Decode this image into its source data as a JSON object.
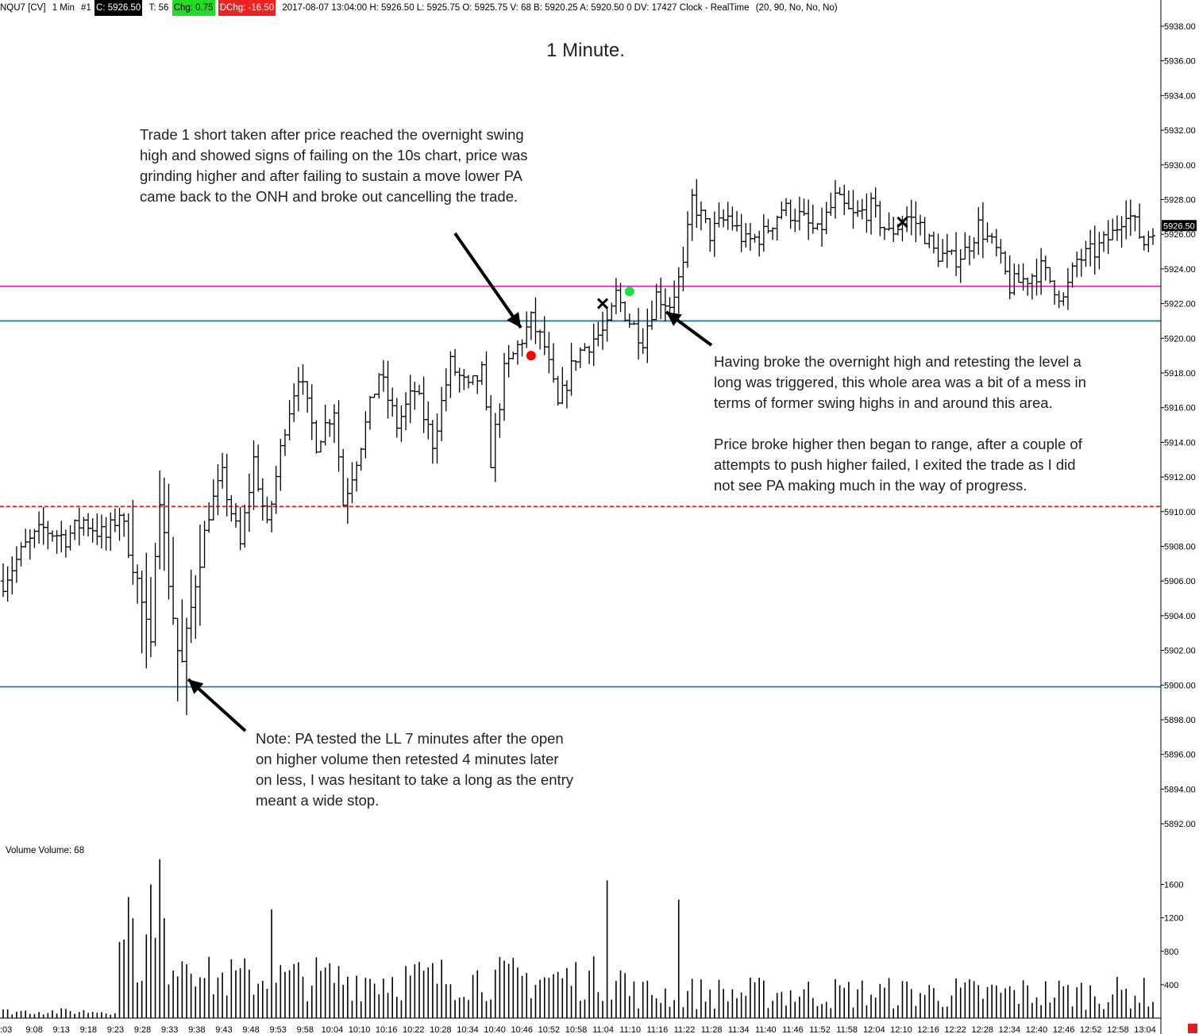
{
  "header": {
    "symbol": "NQU7 [CV]",
    "interval": "1 Min",
    "chart_no": "#1",
    "close": "C: 5926.50",
    "ticks": "T: 56",
    "chg": "Chg: 0.75",
    "dchg": "DChg: -16.50",
    "info": "2017-08-07 13:04:00 H: 5926.50 L: 5925.75 O: 5925.75 V: 68 B: 5920.25 A: 5920.50 0 DV: 17427 Clock - RealTime",
    "params": "(20, 90, No, No, No)",
    "colors": {
      "close_bg": "#000000",
      "close_fg": "#ffffff",
      "chg_bg": "#22dd22",
      "chg_fg": "#000000",
      "dchg_bg": "#ee2222",
      "dchg_fg": "#ffffff"
    }
  },
  "title": "1 Minute.",
  "annotations": {
    "trade1": "Trade 1 short taken after price reached the overnight swing\nhigh and showed signs of failing on the 10s chart, price was\ngrinding higher and after failing to sustain a move lower PA\ncame back to the ONH and broke out cancelling the trade.",
    "long": "Having broke the overnight high and retesting the level a\nlong was triggered, this whole area was a bit of a mess in\nterms of former swing highs in and around this area.\n\nPrice broke higher then began to range, after a couple of\nattempts to push higher failed, I exited the trade as I did\nnot see PA making much in the way of progress.",
    "note": "Note:  PA tested the LL 7 minutes after the open\non higher volume then retested 4 minutes later\non less, I was hesitant to take a long as the entry\nmeant a wide stop."
  },
  "volume_label": "Volume  Volume: 68",
  "colors": {
    "bars": "#000000",
    "magenta_line": "#dd22cc",
    "blue_line": "#2277aa",
    "red_dashed": "#dd2222",
    "entry_short": "#ff0000",
    "entry_long": "#22dd44",
    "last_price_bg": "#000000"
  },
  "chart_data": {
    "type": "ohlc",
    "y_tick_labels": [
      "5938.00",
      "5936.00",
      "5934.00",
      "5932.00",
      "5930.00",
      "5928.00",
      "5926.00",
      "5924.00",
      "5922.00",
      "5920.00",
      "5918.00",
      "5916.00",
      "5914.00",
      "5912.00",
      "5910.00",
      "5908.00",
      "5906.00",
      "5904.00",
      "5902.00",
      "5900.00",
      "5898.00",
      "5896.00",
      "5894.00",
      "5892.00"
    ],
    "ylim": [
      5890.5,
      5939.5
    ],
    "last_price": 5926.5,
    "last_price_label": "5926.50",
    "x_time_labels": [
      ":03",
      "9:08",
      "9:13",
      "9:18",
      "9:23",
      "9:28",
      "9:33",
      "9:38",
      "9:43",
      "9:48",
      "9:53",
      "9:58",
      "10:04",
      "10:10",
      "10:16",
      "10:22",
      "10:28",
      "10:34",
      "10:40",
      "10:46",
      "10:52",
      "10:58",
      "11:04",
      "11:10",
      "11:16",
      "11:22",
      "11:28",
      "11:34",
      "11:40",
      "11:46",
      "11:52",
      "11:58",
      "12:04",
      "12:10",
      "12:16",
      "12:22",
      "12:28",
      "12:34",
      "12:40",
      "12:46",
      "12:52",
      "12:58",
      "13:04"
    ],
    "horizontal_levels": [
      {
        "price": 5923.0,
        "style": "solid",
        "color": "#dd22cc"
      },
      {
        "price": 5921.0,
        "style": "solid",
        "color": "#2277aa"
      },
      {
        "price": 5910.3,
        "style": "dashed",
        "color": "#dd2222"
      },
      {
        "price": 5899.9,
        "style": "solid",
        "color": "#2277aa"
      }
    ],
    "price_path": [
      [
        0,
        5906.0
      ],
      [
        5,
        5908.0
      ],
      [
        9,
        5909.0
      ],
      [
        14,
        5908.5
      ],
      [
        18,
        5909.5
      ],
      [
        23,
        5908.5
      ],
      [
        26,
        5910.0
      ],
      [
        30,
        5906.0
      ],
      [
        33,
        5902.0
      ],
      [
        34,
        5908.0
      ],
      [
        35,
        5911.0
      ],
      [
        37,
        5906.0
      ],
      [
        39,
        5902.0
      ],
      [
        40,
        5901.2
      ],
      [
        43,
        5906.0
      ],
      [
        46,
        5910.0
      ],
      [
        49,
        5912.0
      ],
      [
        53,
        5908.0
      ],
      [
        56,
        5913.0
      ],
      [
        59,
        5909.0
      ],
      [
        63,
        5915.0
      ],
      [
        66,
        5918.0
      ],
      [
        70,
        5914.0
      ],
      [
        74,
        5916.0
      ],
      [
        76,
        5910.5
      ],
      [
        80,
        5914.0
      ],
      [
        84,
        5918.0
      ],
      [
        88,
        5915.0
      ],
      [
        92,
        5917.0
      ],
      [
        96,
        5914.0
      ],
      [
        100,
        5918.5
      ],
      [
        104,
        5917.0
      ],
      [
        107,
        5918.0
      ],
      [
        109,
        5913.0
      ],
      [
        112,
        5918.0
      ],
      [
        116,
        5920.0
      ],
      [
        118,
        5921.0
      ],
      [
        121,
        5919.5
      ],
      [
        124,
        5916.0
      ],
      [
        128,
        5919.0
      ],
      [
        132,
        5920.0
      ],
      [
        135,
        5920.5
      ],
      [
        137,
        5922.5
      ],
      [
        140,
        5921.0
      ],
      [
        143,
        5920.0
      ],
      [
        146,
        5922.5
      ],
      [
        149,
        5922.0
      ],
      [
        152,
        5924.0
      ],
      [
        154,
        5928.0
      ],
      [
        158,
        5926.0
      ],
      [
        162,
        5927.0
      ],
      [
        166,
        5925.5
      ],
      [
        170,
        5926.0
      ],
      [
        174,
        5927.5
      ],
      [
        178,
        5927.0
      ],
      [
        182,
        5926.0
      ],
      [
        186,
        5928.0
      ],
      [
        190,
        5927.0
      ],
      [
        194,
        5927.5
      ],
      [
        198,
        5926.0
      ],
      [
        202,
        5927.0
      ],
      [
        205,
        5926.5
      ],
      [
        208,
        5925.0
      ],
      [
        212,
        5924.5
      ],
      [
        215,
        5925.0
      ],
      [
        218,
        5926.5
      ],
      [
        222,
        5925.0
      ],
      [
        225,
        5923.0
      ],
      [
        229,
        5923.5
      ],
      [
        232,
        5924.0
      ],
      [
        235,
        5923.0
      ],
      [
        237,
        5922.2
      ],
      [
        240,
        5924.5
      ],
      [
        244,
        5925.0
      ],
      [
        248,
        5926.0
      ],
      [
        251,
        5927.5
      ],
      [
        253,
        5926.5
      ],
      [
        255,
        5925.5
      ],
      [
        257,
        5926.5
      ]
    ],
    "volume": {
      "y_tick_labels": [
        "1600",
        "1200",
        "800",
        "400"
      ],
      "ylim": [
        0,
        1900
      ],
      "max_values": {
        "9:36": 1900,
        "11:10": 1650,
        "11:27": 1420
      }
    },
    "trade_markers": [
      {
        "type": "short entry",
        "price": 5919.0,
        "bar": 118
      },
      {
        "type": "short exit",
        "price": 5922.0,
        "bar": 134
      },
      {
        "type": "long entry",
        "price": 5922.7,
        "bar": 140
      },
      {
        "type": "long exit",
        "price": 5926.7,
        "bar": 201
      }
    ]
  }
}
